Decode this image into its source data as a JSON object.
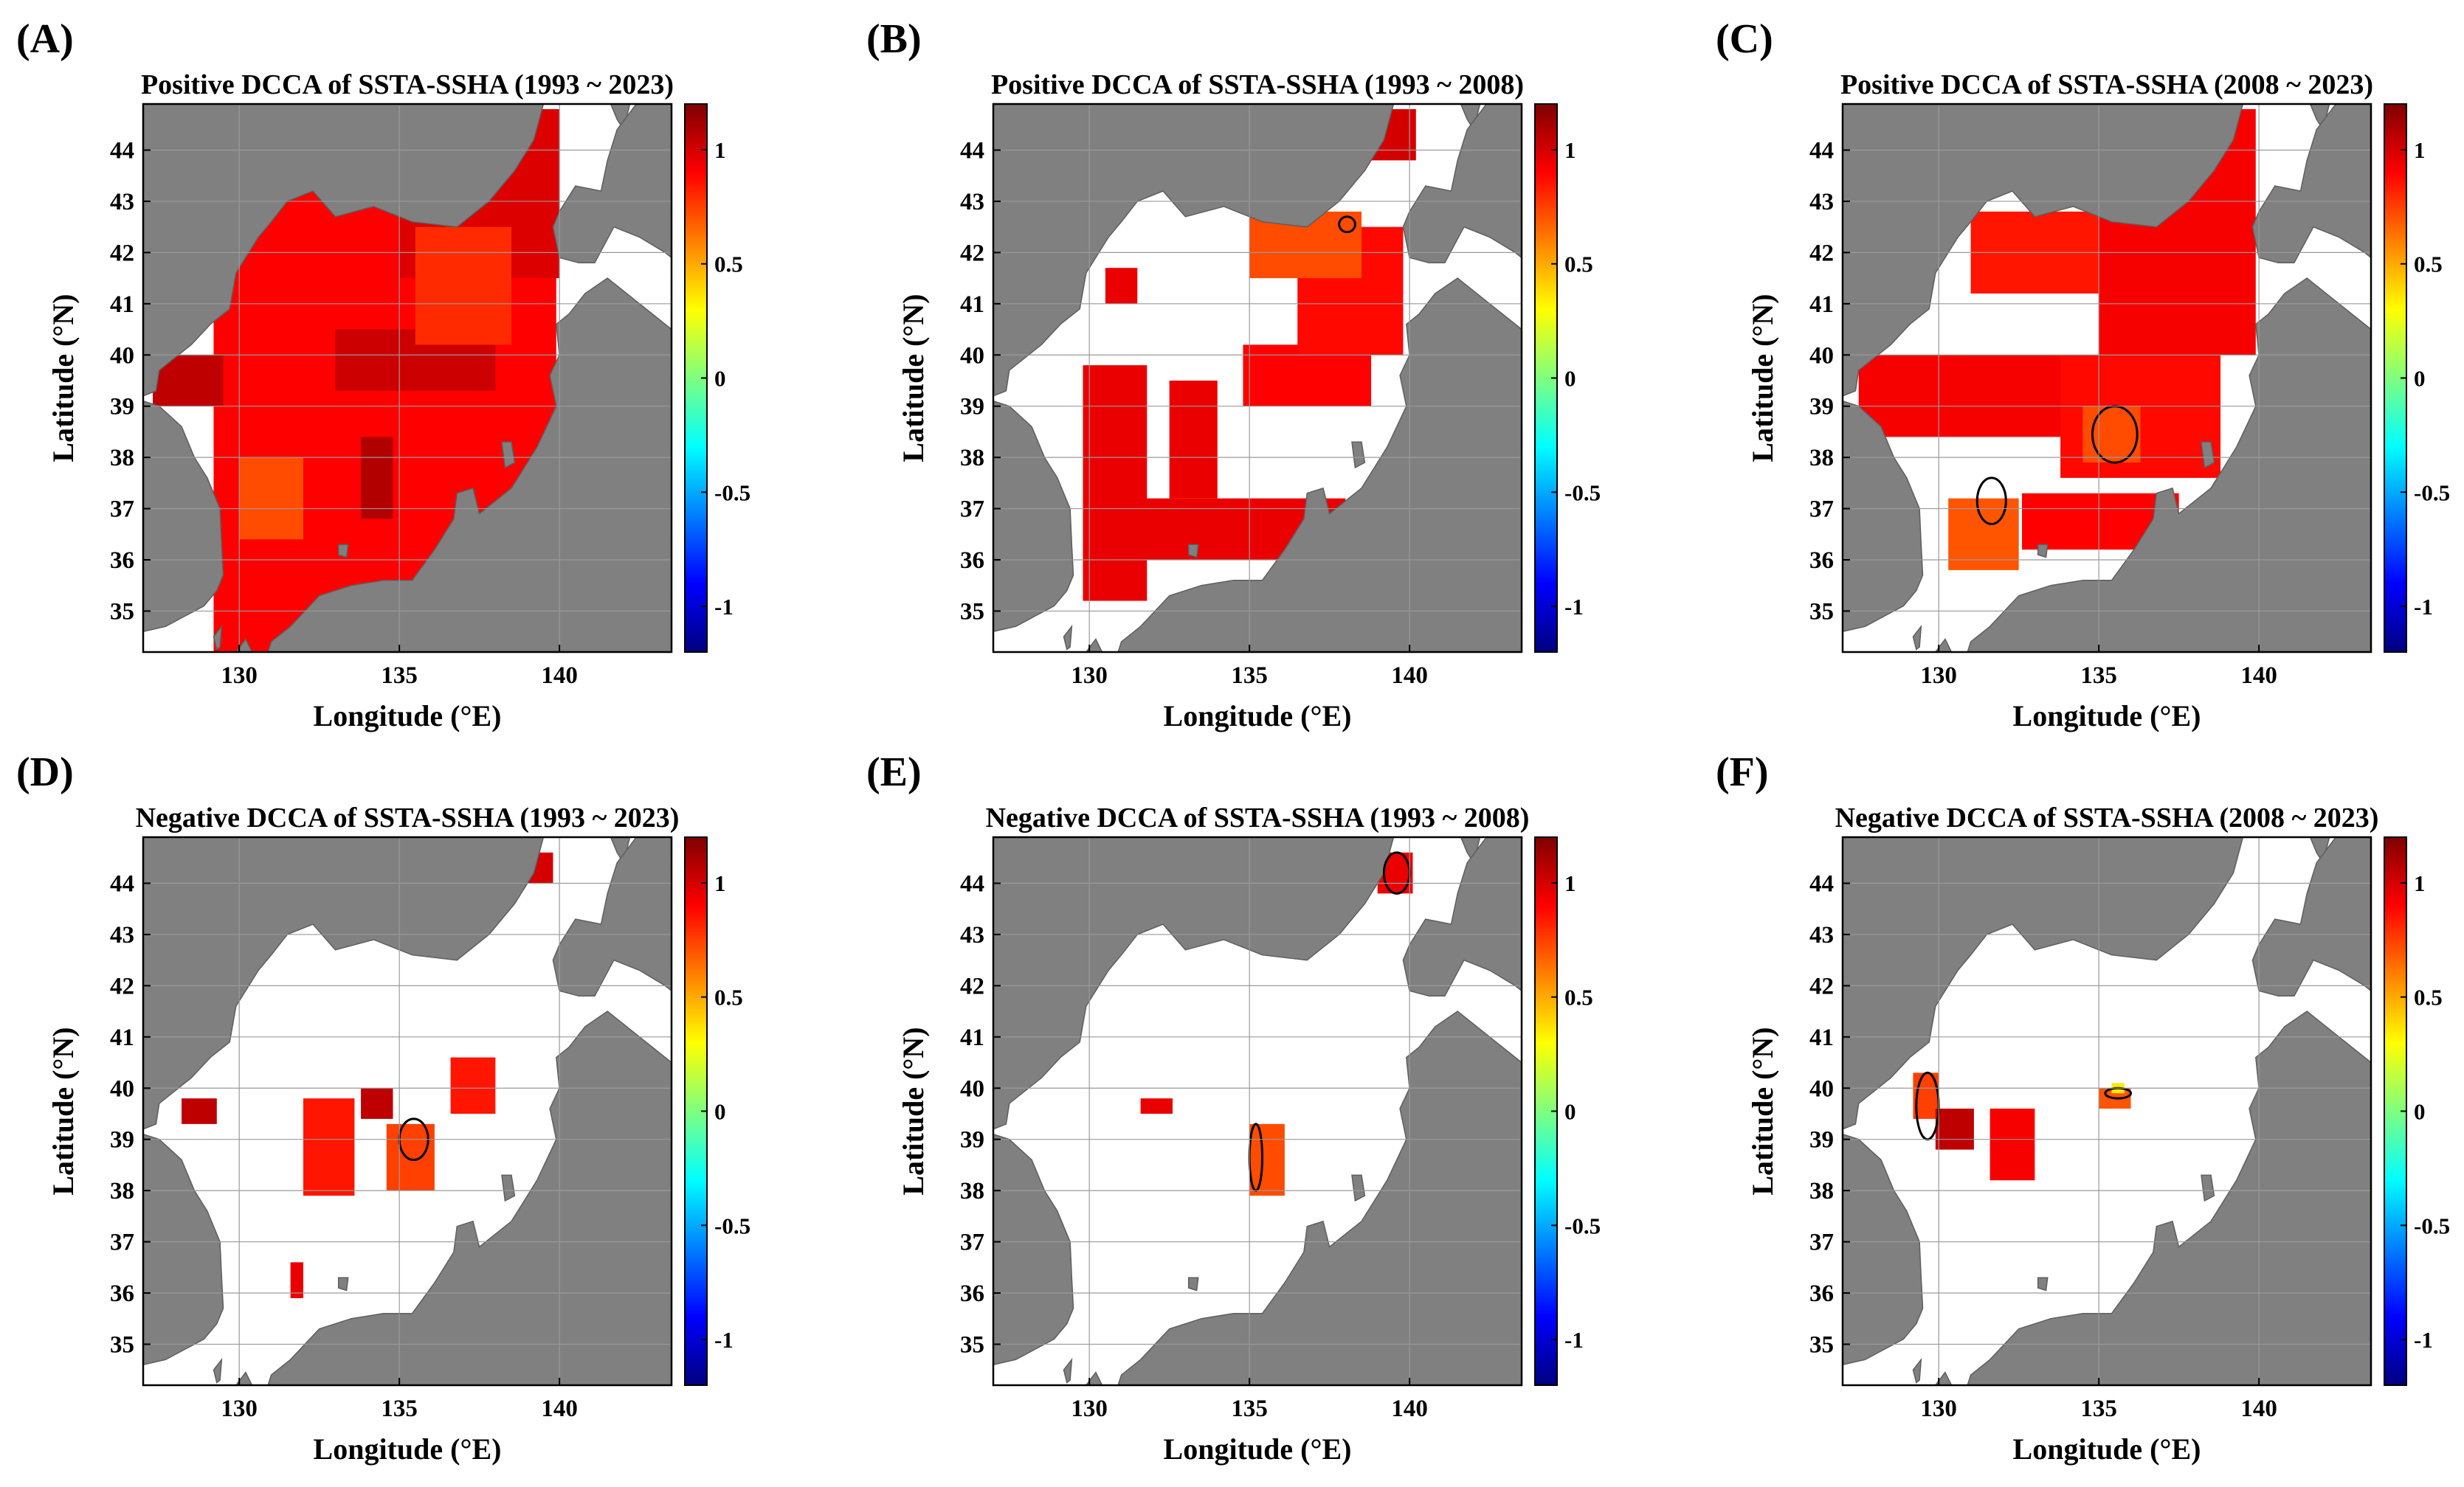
{
  "figure": {
    "panels": [
      {
        "letter": "(A)",
        "title": "Positive DCCA of SSTA-SSHA (1993 ~ 2023)",
        "sign": "positive",
        "period": "1993 ~ 2023"
      },
      {
        "letter": "(B)",
        "title": "Positive DCCA of SSTA-SSHA (1993 ~ 2008)",
        "sign": "positive",
        "period": "1993 ~ 2008"
      },
      {
        "letter": "(C)",
        "title": "Positive DCCA of SSTA-SSHA (2008 ~ 2023)",
        "sign": "positive",
        "period": "2008 ~ 2023"
      },
      {
        "letter": "(D)",
        "title": "Negative DCCA of SSTA-SSHA (1993 ~ 2023)",
        "sign": "negative",
        "period": "1993 ~ 2023"
      },
      {
        "letter": "(E)",
        "title": "Negative DCCA of SSTA-SSHA (1993 ~ 2008)",
        "sign": "negative",
        "period": "1993 ~ 2008"
      },
      {
        "letter": "(F)",
        "title": "Negative DCCA of SSTA-SSHA (2008 ~ 2023)",
        "sign": "negative",
        "period": "2008 ~ 2023"
      }
    ],
    "xlabel": "Longitude (°E)",
    "ylabel": "Latitude (°N)",
    "lon_range": [
      127,
      143.5
    ],
    "lat_range": [
      34.2,
      44.9
    ],
    "lon_ticks": [
      130,
      135,
      140
    ],
    "lat_ticks": [
      35,
      36,
      37,
      38,
      39,
      40,
      41,
      42,
      43,
      44
    ],
    "colorbar": {
      "range": [
        -1.2,
        1.2
      ],
      "ticks": [
        1,
        0.5,
        0,
        -0.5,
        -1
      ],
      "colormap": "jet",
      "stops": [
        "#00007f",
        "#0000ff",
        "#007fff",
        "#00ffff",
        "#7fff7f",
        "#ffff00",
        "#ff7f00",
        "#ff0000",
        "#7f0000"
      ]
    },
    "colors": {
      "land": "#808080",
      "ocean_no_data": "#ffffff",
      "contour": "#000000"
    }
  },
  "chart_data": {
    "type": "heatmap",
    "description_units": "DCCA coefficient on lon/lat grid (degrees)",
    "panels": [
      {
        "id": "A",
        "regions": [
          {
            "lon": [
              129.2,
              139.9
            ],
            "lat": [
              34.2,
              43.9
            ],
            "value": 0.9
          },
          {
            "lon": [
              135.0,
              140.0
            ],
            "lat": [
              41.5,
              44.8
            ],
            "value": 0.98
          },
          {
            "lon": [
              127.3,
              129.5
            ],
            "lat": [
              39.0,
              40.0
            ],
            "value": 1.05
          },
          {
            "lon": [
              133.0,
              138.0
            ],
            "lat": [
              39.3,
              40.5
            ],
            "value": 1.02
          },
          {
            "lon": [
              133.8,
              134.8
            ],
            "lat": [
              36.8,
              38.4
            ],
            "value": 1.08
          },
          {
            "lon": [
              130.0,
              132.0
            ],
            "lat": [
              36.4,
              38.0
            ],
            "value": 0.72
          },
          {
            "lon": [
              135.5,
              138.5
            ],
            "lat": [
              40.2,
              42.5
            ],
            "value": 0.8
          }
        ],
        "contours": []
      },
      {
        "id": "B",
        "regions": [
          {
            "lon": [
              129.8,
              131.8
            ],
            "lat": [
              35.2,
              39.8
            ],
            "value": 0.95
          },
          {
            "lon": [
              131.5,
              138.0
            ],
            "lat": [
              36.0,
              37.2
            ],
            "value": 0.95
          },
          {
            "lon": [
              132.5,
              134.0
            ],
            "lat": [
              37.2,
              39.5
            ],
            "value": 0.95
          },
          {
            "lon": [
              134.8,
              138.8
            ],
            "lat": [
              39.0,
              40.2
            ],
            "value": 0.9
          },
          {
            "lon": [
              136.5,
              139.8
            ],
            "lat": [
              40.0,
              42.5
            ],
            "value": 0.88
          },
          {
            "lon": [
              135.0,
              138.5
            ],
            "lat": [
              41.5,
              42.8
            ],
            "value": 0.72
          },
          {
            "lon": [
              138.8,
              140.2
            ],
            "lat": [
              43.8,
              44.8
            ],
            "value": 1.0
          },
          {
            "lon": [
              130.5,
              131.5
            ],
            "lat": [
              41.0,
              41.7
            ],
            "value": 0.95
          }
        ],
        "contours": [
          {
            "lon": [
              137.8,
              138.3
            ],
            "lat": [
              42.4,
              42.7
            ]
          }
        ]
      },
      {
        "id": "C",
        "regions": [
          {
            "lon": [
              135.0,
              139.9
            ],
            "lat": [
              40.0,
              44.8
            ],
            "value": 0.92
          },
          {
            "lon": [
              131.0,
              135.0
            ],
            "lat": [
              41.2,
              42.8
            ],
            "value": 0.85
          },
          {
            "lon": [
              127.5,
              135.5
            ],
            "lat": [
              38.4,
              40.0
            ],
            "value": 0.92
          },
          {
            "lon": [
              133.8,
              138.8
            ],
            "lat": [
              37.6,
              40.0
            ],
            "value": 0.88
          },
          {
            "lon": [
              130.3,
              132.5
            ],
            "lat": [
              35.8,
              37.2
            ],
            "value": 0.7
          },
          {
            "lon": [
              132.6,
              137.5
            ],
            "lat": [
              36.2,
              37.3
            ],
            "value": 0.9
          },
          {
            "lon": [
              134.5,
              136.3
            ],
            "lat": [
              37.9,
              39.0
            ],
            "value": 0.72
          }
        ],
        "contours": [
          {
            "lon": [
              134.8,
              136.2
            ],
            "lat": [
              37.9,
              39.0
            ]
          },
          {
            "lon": [
              131.2,
              132.1
            ],
            "lat": [
              36.7,
              37.6
            ]
          }
        ]
      },
      {
        "id": "D",
        "regions": [
          {
            "lon": [
              128.2,
              129.3
            ],
            "lat": [
              39.3,
              39.8
            ],
            "value": 1.05
          },
          {
            "lon": [
              132.0,
              133.6
            ],
            "lat": [
              37.9,
              39.8
            ],
            "value": 0.85
          },
          {
            "lon": [
              133.8,
              134.8
            ],
            "lat": [
              39.4,
              40.0
            ],
            "value": 1.05
          },
          {
            "lon": [
              134.6,
              136.1
            ],
            "lat": [
              38.0,
              39.3
            ],
            "value": 0.75
          },
          {
            "lon": [
              136.6,
              138.0
            ],
            "lat": [
              39.5,
              40.6
            ],
            "value": 0.85
          },
          {
            "lon": [
              138.8,
              139.8
            ],
            "lat": [
              44.0,
              44.6
            ],
            "value": 1.0
          },
          {
            "lon": [
              131.6,
              132.0
            ],
            "lat": [
              35.9,
              36.6
            ],
            "value": 0.95
          }
        ],
        "contours": [
          {
            "lon": [
              135.0,
              135.9
            ],
            "lat": [
              38.6,
              39.4
            ]
          }
        ]
      },
      {
        "id": "E",
        "regions": [
          {
            "lon": [
              131.6,
              132.6
            ],
            "lat": [
              39.5,
              39.8
            ],
            "value": 0.95
          },
          {
            "lon": [
              135.0,
              136.1
            ],
            "lat": [
              37.9,
              39.3
            ],
            "value": 0.72
          },
          {
            "lon": [
              139.0,
              140.1
            ],
            "lat": [
              43.8,
              44.6
            ],
            "value": 0.95
          }
        ],
        "contours": [
          {
            "lon": [
              139.2,
              140.0
            ],
            "lat": [
              43.8,
              44.6
            ]
          },
          {
            "lon": [
              135.0,
              135.4
            ],
            "lat": [
              38.0,
              39.3
            ]
          }
        ]
      },
      {
        "id": "F",
        "regions": [
          {
            "lon": [
              129.2,
              130.0
            ],
            "lat": [
              39.4,
              40.3
            ],
            "value": 0.75
          },
          {
            "lon": [
              129.9,
              131.1
            ],
            "lat": [
              38.8,
              39.6
            ],
            "value": 1.05
          },
          {
            "lon": [
              131.6,
              133.0
            ],
            "lat": [
              38.2,
              39.6
            ],
            "value": 0.92
          },
          {
            "lon": [
              135.0,
              136.0
            ],
            "lat": [
              39.6,
              40.0
            ],
            "value": 0.7
          },
          {
            "lon": [
              135.4,
              135.8
            ],
            "lat": [
              39.9,
              40.1
            ],
            "value": 0.35
          }
        ],
        "contours": [
          {
            "lon": [
              129.3,
              130.0
            ],
            "lat": [
              39.0,
              40.3
            ]
          },
          {
            "lon": [
              135.2,
              136.0
            ],
            "lat": [
              39.8,
              40.0
            ]
          }
        ]
      }
    ]
  }
}
